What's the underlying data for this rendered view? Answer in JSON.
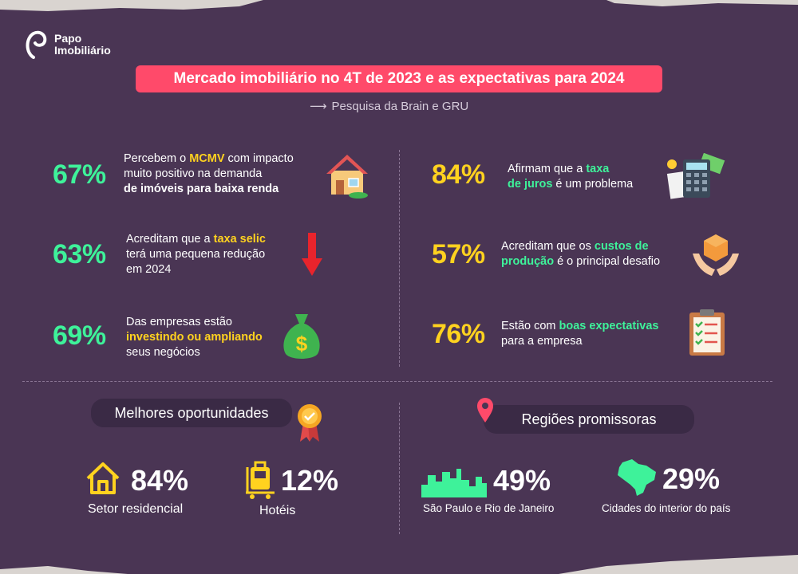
{
  "brand": {
    "line1": "Papo",
    "line2": "Imobiliário"
  },
  "header": {
    "title": "Mercado imobiliário no 4T de 2023 e as expectativas para 2024",
    "arrow": "⟶",
    "subtitle": "Pesquisa da Brain e GRU"
  },
  "stats": [
    {
      "value": "67%",
      "t1": "Percebem o ",
      "h1": "MCMV",
      "t2": " com impacto",
      "t3": "muito positivo na demanda",
      "t4": "de imóveis para baixa renda"
    },
    {
      "value": "63%",
      "t1": "Acreditam que a ",
      "h1": "taxa selic",
      "t2": "terá uma pequena redução",
      "t3": "em 2024"
    },
    {
      "value": "69%",
      "t1": "Das empresas estão",
      "h1": "investindo ou ampliando",
      "t2": "seus negócios"
    },
    {
      "value": "84%",
      "t1": "Afirmam que a ",
      "h1": "taxa",
      "h2": "de juros",
      "t2": " é um problema"
    },
    {
      "value": "57%",
      "t1": "Acreditam que os ",
      "h1": "custos de",
      "h2": "produção",
      "t2": " é o principal desafio"
    },
    {
      "value": "76%",
      "t1": "Estão com ",
      "h1": "boas expectativas",
      "t2": "para a empresa"
    }
  ],
  "opportunities": {
    "title": "Melhores oportunidades",
    "items": [
      {
        "value": "84%",
        "label": "Setor residencial"
      },
      {
        "value": "12%",
        "label": "Hotéis"
      }
    ]
  },
  "regions": {
    "title": "Regiões promissoras",
    "items": [
      {
        "value": "49%",
        "label": "São Paulo e Rio de Janeiro"
      },
      {
        "value": "29%",
        "label": "Cidades do interior do país"
      }
    ]
  },
  "colors": {
    "background": "#4a3554",
    "accent_pink": "#ff4a6a",
    "green": "#3ef29a",
    "yellow": "#ffd21f"
  }
}
